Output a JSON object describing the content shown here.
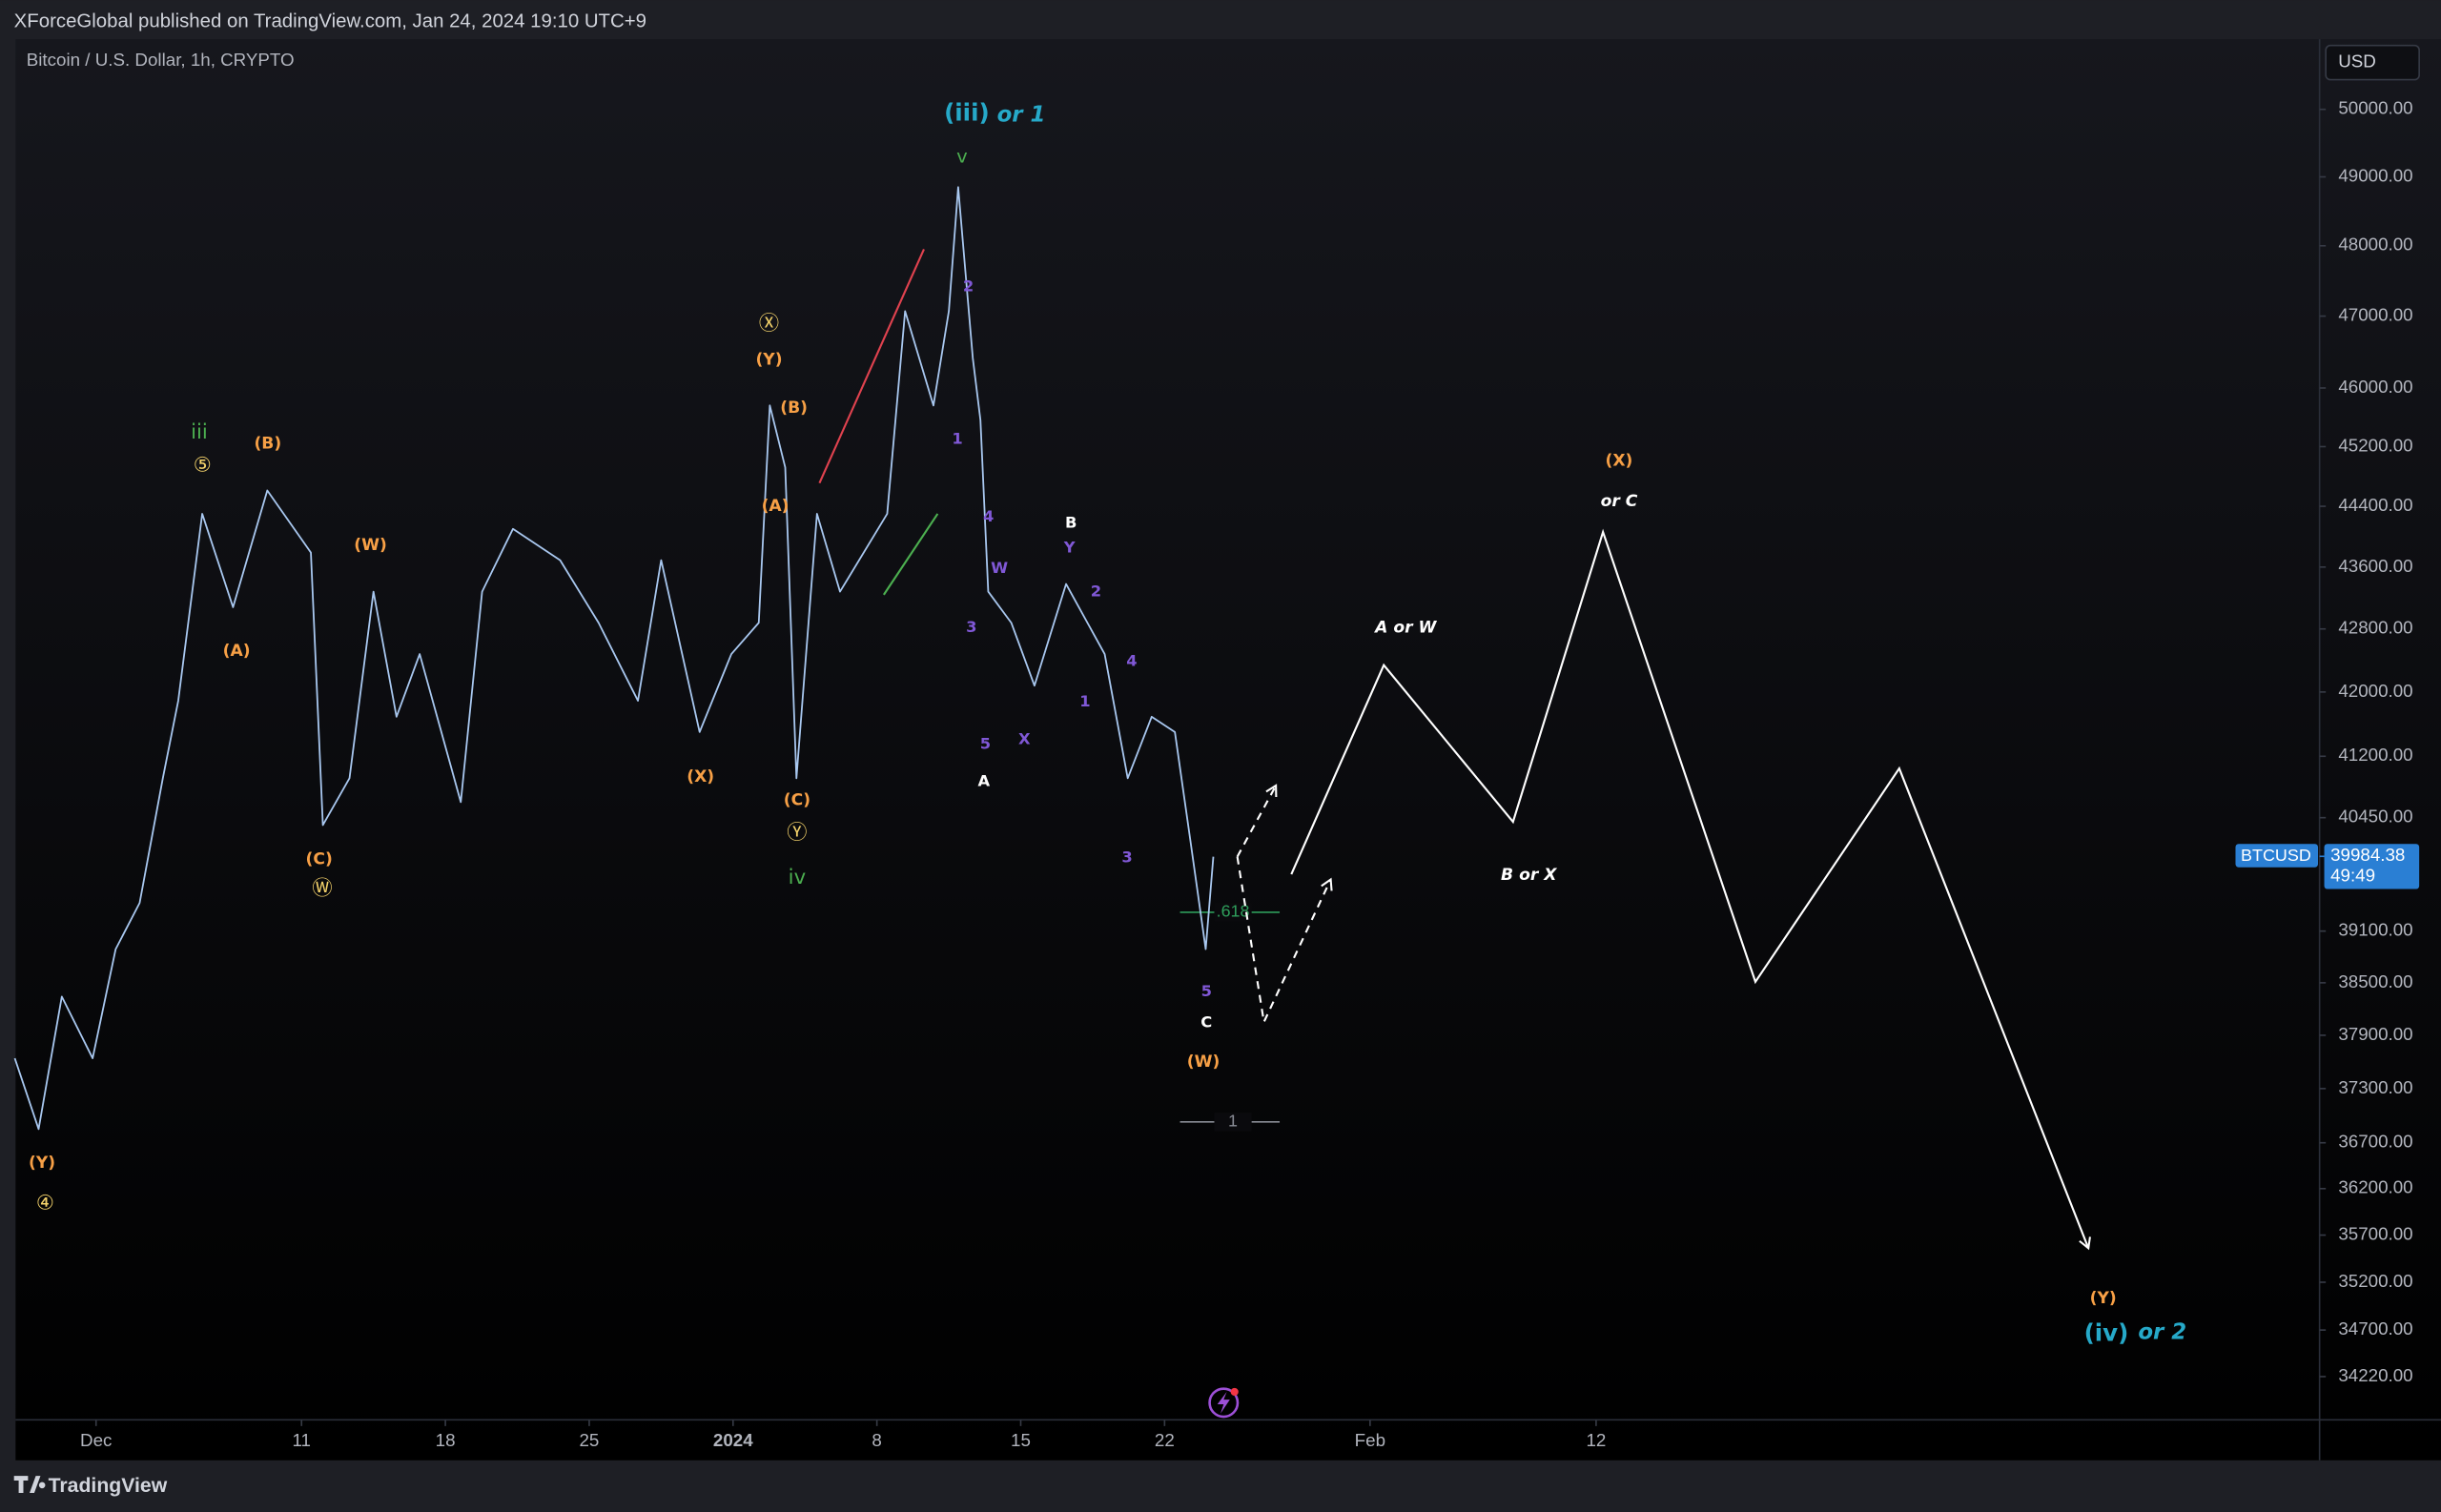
{
  "header": {
    "publisher": "XForceGlobal published on TradingView.com, Jan 24, 2024 19:10 UTC+9"
  },
  "chart_data": {
    "type": "line",
    "title": "Bitcoin / U.S. Dollar, 1h, CRYPTO",
    "currency": "USD",
    "log_scale": true,
    "grid": false,
    "x": [
      "2023-11-27T01:00",
      "2023-11-28T05:00",
      "2023-11-29T08:00",
      "2023-11-30T20:00",
      "2023-12-01T23:00",
      "2023-12-03T03:00",
      "2023-12-04T06:00",
      "2023-12-05T00:00",
      "2023-12-06T04:00",
      "2023-12-07T16:00",
      "2023-12-09T08:00",
      "2023-12-11T11:00",
      "2023-12-12T01:00",
      "2023-12-13T08:00",
      "2023-12-14T12:00",
      "2023-12-15T15:00",
      "2023-12-16T18:00",
      "2023-12-18T18:00",
      "2023-12-19T19:00",
      "2023-12-21T07:00",
      "2023-12-23T14:00",
      "2023-12-25T11:00",
      "2023-12-27T09:00",
      "2023-12-28T12:00",
      "2023-12-30T09:00",
      "2023-12-31T22:00",
      "2024-01-02T06:00",
      "2024-01-02T19:00",
      "2024-01-03T13:00",
      "2024-01-04T02:00",
      "2024-01-05T02:00",
      "2024-01-06T05:00",
      "2024-01-08T12:00",
      "2024-01-09T09:00",
      "2024-01-10T18:00",
      "2024-01-11T12:00",
      "2024-01-11T23:00",
      "2024-01-12T16:00",
      "2024-01-13T01:00",
      "2024-01-13T10:00",
      "2024-01-14T13:00",
      "2024-01-15T16:00",
      "2024-01-17T05:00",
      "2024-01-19T02:00",
      "2024-01-20T05:00",
      "2024-01-21T09:00",
      "2024-01-22T12:00",
      "2024-01-23T06:00",
      "2024-01-24T00:00",
      "2024-01-24T09:00"
    ],
    "series": [
      {
        "name": "BTCUSD",
        "color": "#a9c8f0",
        "values": [
          37640,
          36850,
          38340,
          37640,
          38890,
          39430,
          40930,
          41890,
          44300,
          43080,
          44610,
          43790,
          40360,
          40930,
          43280,
          41690,
          42480,
          40640,
          43280,
          44100,
          43690,
          42880,
          41890,
          43690,
          41500,
          42480,
          42880,
          45760,
          44920,
          40930,
          44300,
          43280,
          44300,
          47070,
          45760,
          47070,
          48850,
          46410,
          45560,
          43280,
          42880,
          42080,
          43380,
          42480,
          40930,
          41690,
          41500,
          40180,
          38890,
          39980
        ]
      }
    ],
    "last_price": 39984.38,
    "last_price_color": "#2a7fd4",
    "countdown": "49:49",
    "drawings": [
      {
        "style": "solid",
        "color": "#ffffff",
        "arrow": true,
        "x": [
          "2024-01-28T04:00",
          "2024-02-01T16:00",
          "2024-02-07T23:00",
          "2024-02-12T08:00",
          "2024-02-19T18:00",
          "2024-02-26T18:00",
          "2024-03-06T23:00"
        ],
        "values": [
          39770,
          42340,
          40400,
          44060,
          38510,
          41050,
          35560
        ]
      },
      {
        "style": "dashed",
        "color": "#ffffff",
        "arrow": true,
        "x": [
          "2024-01-25T13:00",
          "2024-01-27T10:00"
        ],
        "values": [
          39980,
          40840
        ]
      },
      {
        "style": "dashed",
        "color": "#ffffff",
        "arrow": true,
        "x": [
          "2024-01-25T13:00",
          "2024-01-26T20:00",
          "2024-01-30T02:00"
        ],
        "values": [
          39980,
          38050,
          39710
        ]
      },
      {
        "style": "solid",
        "color": "#e0424f",
        "arrow": false,
        "x": [
          "2024-01-05T05:00",
          "2024-01-10T07:00"
        ],
        "values": [
          44710,
          47950
        ]
      },
      {
        "style": "solid",
        "color": "#4caf50",
        "arrow": false,
        "x": [
          "2024-01-08T08:00",
          "2024-01-10T23:00"
        ],
        "values": [
          43240,
          44300
        ]
      }
    ],
    "levels": [
      {
        "label": ".618",
        "value": 39320,
        "color": "#2e9e5b"
      },
      {
        "label": "1",
        "value": 36930,
        "color": "#8a8d96"
      }
    ],
    "annotations": [
      {
        "text": "(iii)",
        "color": "#26a9c9"
      },
      {
        "text": "or 1",
        "color": "#26a9c9"
      },
      {
        "text": "v",
        "color": "#4caf50"
      },
      {
        "text": "2",
        "color": "#8058d6"
      },
      {
        "text": "1",
        "color": "#8058d6"
      },
      {
        "text": "4",
        "color": "#8058d6"
      },
      {
        "text": "W",
        "color": "#8058d6"
      },
      {
        "text": "3",
        "color": "#8058d6"
      },
      {
        "text": "5",
        "color": "#8058d6"
      },
      {
        "text": "X",
        "color": "#8058d6"
      },
      {
        "text": "A",
        "color": "#ffffff"
      },
      {
        "text": "B",
        "color": "#ffffff"
      },
      {
        "text": "Y",
        "color": "#8058d6"
      },
      {
        "text": "2",
        "color": "#8058d6"
      },
      {
        "text": "4",
        "color": "#8058d6"
      },
      {
        "text": "1",
        "color": "#8058d6"
      },
      {
        "text": "3",
        "color": "#8058d6"
      },
      {
        "text": "5",
        "color": "#8058d6"
      },
      {
        "text": "C",
        "color": "#ffffff"
      },
      {
        "text": "(W)",
        "color": "#f7a046"
      },
      {
        "text": "Ⓧ",
        "color": "#f5d36b"
      },
      {
        "text": "(Y)",
        "color": "#f7a046"
      },
      {
        "text": "(B)",
        "color": "#f7a046"
      },
      {
        "text": "(A)",
        "color": "#f7a046"
      },
      {
        "text": "(C)",
        "color": "#f7a046"
      },
      {
        "text": "Ⓨ",
        "color": "#f5d36b"
      },
      {
        "text": "iv",
        "color": "#4caf50"
      },
      {
        "text": "(X)",
        "color": "#f7a046"
      },
      {
        "text": "iii",
        "color": "#4caf50"
      },
      {
        "text": "⑤",
        "color": "#f5d36b"
      },
      {
        "text": "(B)",
        "color": "#f7a046"
      },
      {
        "text": "(W)",
        "color": "#f7a046"
      },
      {
        "text": "(A)",
        "color": "#f7a046"
      },
      {
        "text": "(C)",
        "color": "#f7a046"
      },
      {
        "text": "Ⓦ",
        "color": "#f5d36b"
      },
      {
        "text": "(Y)",
        "color": "#f7a046"
      },
      {
        "text": "④",
        "color": "#f5d36b"
      },
      {
        "text": "A or W",
        "color": "#ffffff"
      },
      {
        "text": "B or X",
        "color": "#ffffff"
      },
      {
        "text": "(X)",
        "color": "#f7a046"
      },
      {
        "text": "or C",
        "color": "#ffffff"
      },
      {
        "text": "(Y)",
        "color": "#f7a046"
      },
      {
        "text": "(iv)",
        "color": "#26a9c9"
      },
      {
        "text": "or 2",
        "color": "#26a9c9"
      }
    ],
    "xlim": [
      "2023-11-27T02:00",
      "2024-03-18T05:00"
    ],
    "xticks": [
      {
        "value": "2023-12-01T00:00",
        "label": "Dec"
      },
      {
        "value": "2023-12-11T00:00",
        "label": "11"
      },
      {
        "value": "2023-12-18T00:00",
        "label": "18"
      },
      {
        "value": "2023-12-25T00:00",
        "label": "25"
      },
      {
        "value": "2024-01-01T00:00",
        "label": "2024"
      },
      {
        "value": "2024-01-08T00:00",
        "label": "8"
      },
      {
        "value": "2024-01-15T00:00",
        "label": "15"
      },
      {
        "value": "2024-01-22T00:00",
        "label": "22"
      },
      {
        "value": "2024-02-01T00:00",
        "label": "Feb"
      },
      {
        "value": "2024-02-12T00:00",
        "label": "12"
      }
    ],
    "ylim": [
      33780,
      51060
    ],
    "yticks": [
      {
        "value": 50000,
        "label": "50000.00"
      },
      {
        "value": 49000,
        "label": "49000.00"
      },
      {
        "value": 48000,
        "label": "48000.00"
      },
      {
        "value": 47000,
        "label": "47000.00"
      },
      {
        "value": 46000,
        "label": "46000.00"
      },
      {
        "value": 45200,
        "label": "45200.00"
      },
      {
        "value": 44400,
        "label": "44400.00"
      },
      {
        "value": 43600,
        "label": "43600.00"
      },
      {
        "value": 42800,
        "label": "42800.00"
      },
      {
        "value": 42000,
        "label": "42000.00"
      },
      {
        "value": 41200,
        "label": "41200.00"
      },
      {
        "value": 40450,
        "label": "40450.00"
      },
      {
        "value": 39100,
        "label": "39100.00"
      },
      {
        "value": 38500,
        "label": "38500.00"
      },
      {
        "value": 37900,
        "label": "37900.00"
      },
      {
        "value": 37300,
        "label": "37300.00"
      },
      {
        "value": 36700,
        "label": "36700.00"
      },
      {
        "value": 36200,
        "label": "36200.00"
      },
      {
        "value": 35700,
        "label": "35700.00"
      },
      {
        "value": 35200,
        "label": "35200.00"
      },
      {
        "value": 34700,
        "label": "34700.00"
      },
      {
        "value": 34220,
        "label": "34220.00"
      }
    ]
  },
  "footer": {
    "brand": "TradingView"
  }
}
